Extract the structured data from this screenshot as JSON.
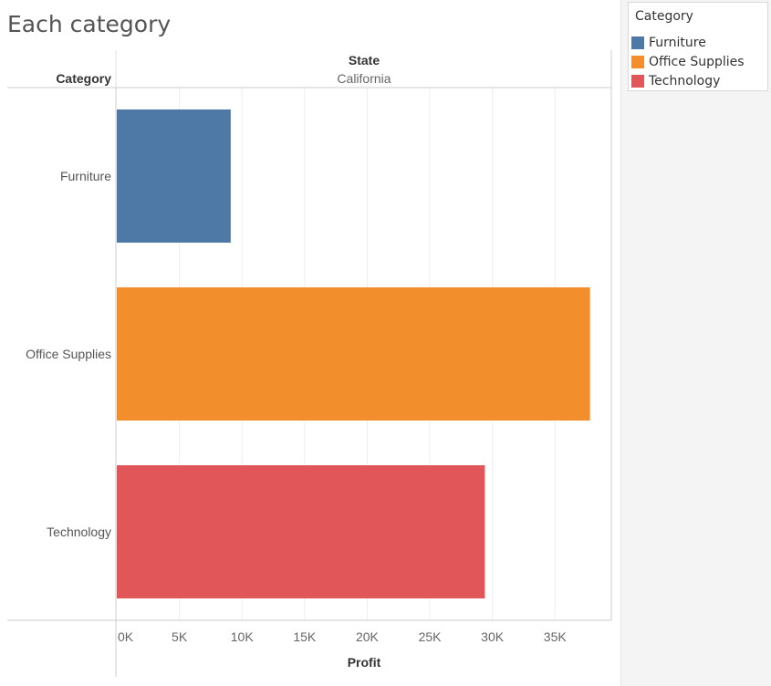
{
  "title": "Each category",
  "header": {
    "row_field": "Category",
    "column_field": "State",
    "column_value": "California"
  },
  "legend": {
    "title": "Category",
    "items": [
      {
        "label": "Furniture",
        "color": "#4e79a7"
      },
      {
        "label": "Office Supplies",
        "color": "#f28e2b"
      },
      {
        "label": "Technology",
        "color": "#e15759"
      }
    ]
  },
  "chart_data": {
    "type": "bar",
    "orientation": "horizontal",
    "title": "Each category",
    "categories": [
      "Furniture",
      "Office Supplies",
      "Technology"
    ],
    "values": [
      9100,
      37800,
      29400
    ],
    "colors": [
      "#4e79a7",
      "#f28e2b",
      "#e15759"
    ],
    "xlabel": "Profit",
    "ylabel": "Category",
    "xlim": [
      0,
      39500
    ],
    "xticks": [
      0,
      5000,
      10000,
      15000,
      20000,
      25000,
      30000,
      35000
    ],
    "xtick_labels": [
      "0K",
      "5K",
      "10K",
      "15K",
      "20K",
      "25K",
      "30K",
      "35K"
    ],
    "grid": true
  }
}
